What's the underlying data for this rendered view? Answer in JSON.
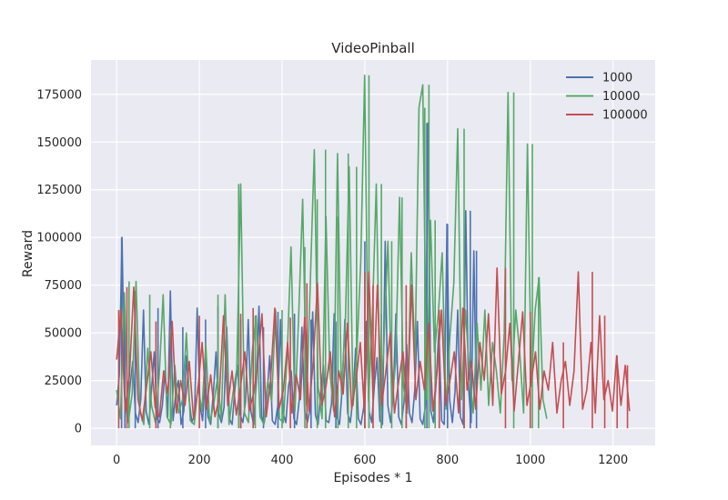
{
  "chart_data": {
    "type": "line",
    "title": "VideoPinball",
    "xlabel": "Episodes * 1",
    "ylabel": "Reward",
    "xlim": [
      -62,
      1302
    ],
    "ylim": [
      -9000,
      193000
    ],
    "xticks": [
      0,
      200,
      400,
      600,
      800,
      1000,
      1200
    ],
    "yticks": [
      0,
      25000,
      50000,
      75000,
      100000,
      125000,
      150000,
      175000
    ],
    "grid": true,
    "legend": "top-right",
    "series": [
      {
        "name": "1000",
        "color": "#4c72b0",
        "x_range": [
          0,
          870
        ],
        "peaks": [
          [
            12,
            100000
          ],
          [
            20,
            62000
          ],
          [
            45,
            72000
          ],
          [
            100,
            63000
          ],
          [
            160,
            53000
          ],
          [
            215,
            57000
          ],
          [
            245,
            64000
          ],
          [
            300,
            57000
          ],
          [
            355,
            53000
          ],
          [
            390,
            61000
          ],
          [
            430,
            60000
          ],
          [
            470,
            57000
          ],
          [
            530,
            56000
          ],
          [
            600,
            98000
          ],
          [
            640,
            60000
          ],
          [
            700,
            56000
          ],
          [
            750,
            160000
          ],
          [
            800,
            107000
          ],
          [
            855,
            114000
          ],
          [
            870,
            93000
          ]
        ],
        "values": [
          12000,
          28000,
          100000,
          18000,
          4000,
          22000,
          35000,
          8000,
          3000,
          15000,
          62000,
          9000,
          2000,
          20000,
          40000,
          5000,
          3000,
          12000,
          30000,
          6000,
          72000,
          4000,
          18000,
          25000,
          2000,
          9000,
          38000,
          15000,
          3000,
          7000,
          63000,
          12000,
          4000,
          26000,
          6000,
          2000,
          18000,
          40000,
          8000,
          3000,
          11000,
          53000,
          5000,
          2000,
          20000,
          33000,
          7000,
          3000,
          14000,
          57000,
          9000,
          2000,
          24000,
          64000,
          6000,
          3000,
          17000,
          38000,
          4000,
          2000,
          12000,
          57000,
          8000,
          3000,
          22000,
          30000,
          5000,
          2000,
          15000,
          53000,
          9000,
          3000,
          10000,
          61000,
          7000,
          2000,
          19000,
          33000,
          4000,
          3000,
          13000,
          60000,
          6000,
          2000,
          21000,
          57000,
          8000,
          3000,
          16000,
          42000,
          5000,
          2000,
          11000,
          56000,
          9000,
          3000,
          23000,
          37000,
          4000,
          2000,
          98000,
          12000,
          3000,
          18000,
          60000,
          6000,
          2000,
          14000,
          44000,
          8000,
          3000,
          20000,
          56000,
          5000,
          2000,
          12000,
          160000,
          9000,
          3000,
          25000,
          52000,
          4000,
          2000,
          107000,
          15000,
          3000,
          19000,
          62000,
          6000,
          2000,
          114000,
          22000,
          3000,
          93000,
          10000
        ]
      },
      {
        "name": "10000",
        "color": "#55a868",
        "x_range": [
          0,
          1040
        ],
        "peaks": [
          [
            30,
            77000
          ],
          [
            80,
            70000
          ],
          [
            130,
            50000
          ],
          [
            245,
            70000
          ],
          [
            295,
            128000
          ],
          [
            335,
            59000
          ],
          [
            400,
            62000
          ],
          [
            455,
            95000
          ],
          [
            485,
            120000
          ],
          [
            505,
            146000
          ],
          [
            535,
            111000
          ],
          [
            560,
            144000
          ],
          [
            580,
            137000
          ],
          [
            610,
            185000
          ],
          [
            640,
            128000
          ],
          [
            665,
            98000
          ],
          [
            690,
            121000
          ],
          [
            745,
            168000
          ],
          [
            755,
            180000
          ],
          [
            770,
            109000
          ],
          [
            840,
            157000
          ],
          [
            960,
            176000
          ],
          [
            1005,
            149000
          ],
          [
            1020,
            79000
          ]
        ],
        "values": [
          20000,
          5000,
          71000,
          3000,
          18000,
          77000,
          9000,
          2000,
          42000,
          12000,
          3000,
          28000,
          70000,
          6000,
          2000,
          33000,
          8000,
          15000,
          50000,
          4000,
          2000,
          22000,
          9000,
          44000,
          3000,
          12000,
          26000,
          5000,
          70000,
          2000,
          18000,
          31000,
          128000,
          8000,
          3000,
          40000,
          59000,
          6000,
          2000,
          25000,
          14000,
          62000,
          5000,
          3000,
          38000,
          95000,
          9000,
          60000,
          120000,
          12000,
          78000,
          146000,
          22000,
          5000,
          111000,
          30000,
          9000,
          144000,
          18000,
          55000,
          137000,
          12000,
          40000,
          88000,
          185000,
          14000,
          60000,
          128000,
          9000,
          45000,
          98000,
          12000,
          35000,
          121000,
          22000,
          8000,
          92000,
          35000,
          168000,
          180000,
          15000,
          109000,
          40000,
          60000,
          92000,
          10000,
          48000,
          76000,
          157000,
          15000,
          62000,
          30000,
          8000,
          55000,
          20000,
          62000,
          12000,
          45000,
          30000,
          8000,
          50000,
          176000,
          25000,
          62000,
          40000,
          8000,
          149000,
          22000,
          62000,
          79000,
          15000,
          5000
        ]
      },
      {
        "name": "100000",
        "color": "#c44e52",
        "x_range": [
          0,
          1240
        ],
        "peaks": [
          [
            5,
            62000
          ],
          [
            25,
            74000
          ],
          [
            95,
            56000
          ],
          [
            200,
            59000
          ],
          [
            300,
            60000
          ],
          [
            330,
            63000
          ],
          [
            420,
            58000
          ],
          [
            460,
            76000
          ],
          [
            600,
            82000
          ],
          [
            620,
            75000
          ],
          [
            700,
            75000
          ],
          [
            780,
            62000
          ],
          [
            840,
            63000
          ],
          [
            940,
            84000
          ],
          [
            1000,
            61000
          ],
          [
            1080,
            45000
          ],
          [
            1150,
            82000
          ],
          [
            1180,
            59000
          ],
          [
            1210,
            38000
          ],
          [
            1235,
            33000
          ]
        ],
        "values": [
          36000,
          62000,
          9000,
          28000,
          74000,
          15000,
          4000,
          22000,
          40000,
          11000,
          6000,
          30000,
          18000,
          56000,
          8000,
          25000,
          12000,
          35000,
          5000,
          20000,
          45000,
          10000,
          28000,
          6000,
          16000,
          59000,
          12000,
          30000,
          7000,
          22000,
          40000,
          9000,
          18000,
          33000,
          60000,
          6000,
          25000,
          63000,
          10000,
          20000,
          45000,
          8000,
          28000,
          15000,
          58000,
          9000,
          35000,
          76000,
          12000,
          22000,
          40000,
          6000,
          30000,
          18000,
          55000,
          10000,
          25000,
          45000,
          8000,
          82000,
          15000,
          75000,
          12000,
          30000,
          50000,
          8000,
          25000,
          40000,
          10000,
          75000,
          15000,
          35000,
          20000,
          55000,
          9000,
          30000,
          62000,
          12000,
          25000,
          40000,
          8000,
          63000,
          20000,
          35000,
          10000,
          45000,
          25000,
          60000,
          12000,
          84000,
          18000,
          30000,
          55000,
          9000,
          35000,
          61000,
          12000,
          25000,
          40000,
          10000,
          30000,
          20000,
          45000,
          8000,
          25000,
          35000,
          12000,
          30000,
          82000,
          10000,
          20000,
          45000,
          8000,
          59000,
          15000,
          25000,
          9000,
          38000,
          12000,
          33000,
          9000
        ]
      }
    ]
  }
}
